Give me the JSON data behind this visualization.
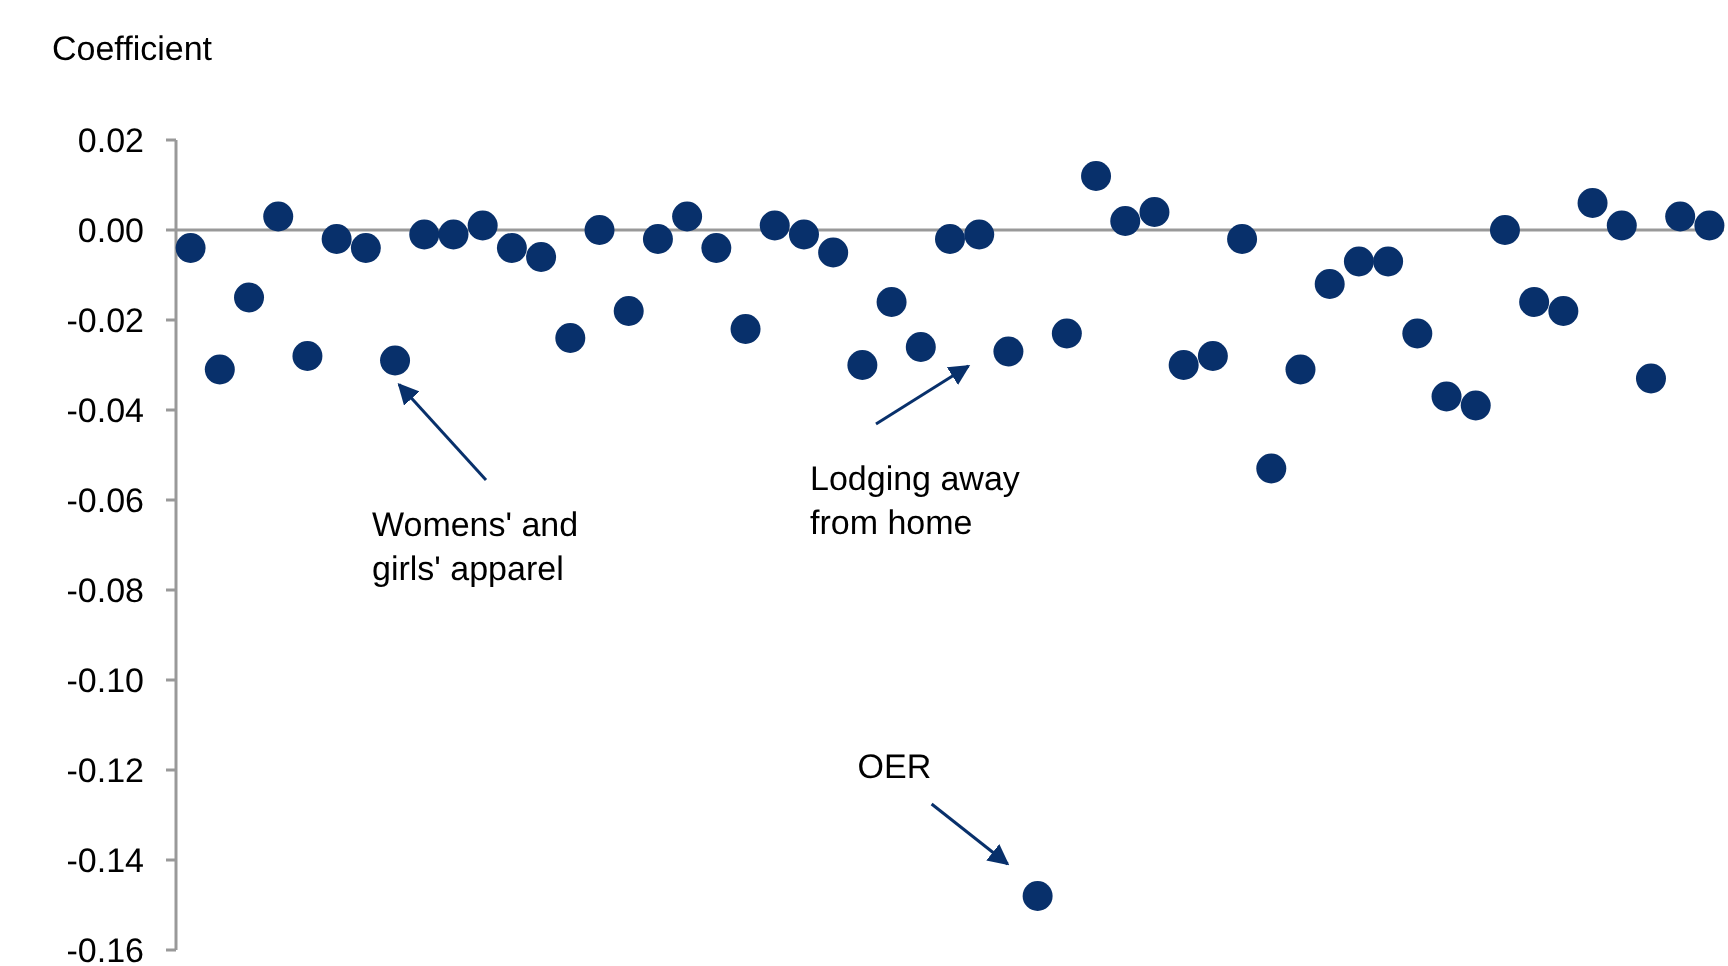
{
  "chart_data": {
    "type": "scatter",
    "ylabel": "Coefficient",
    "categories": [
      null,
      null,
      null,
      null,
      null,
      null,
      null,
      null,
      null,
      null,
      null,
      null,
      null,
      null,
      null,
      null,
      null,
      null,
      null,
      null,
      null,
      null,
      null,
      null,
      null,
      null,
      null,
      null,
      null,
      null,
      null,
      null,
      null,
      null,
      null,
      null,
      null,
      null,
      null,
      null,
      null,
      null,
      null,
      null,
      null,
      null,
      null,
      null,
      null,
      null,
      null,
      null,
      null
    ],
    "series": [
      {
        "color": "#08306b",
        "values": [
          -0.004,
          -0.031,
          -0.015,
          0.003,
          -0.028,
          -0.002,
          -0.004,
          -0.029,
          -0.001,
          -0.001,
          0.001,
          -0.004,
          -0.006,
          -0.024,
          0.0,
          -0.018,
          -0.002,
          0.003,
          -0.004,
          -0.022,
          0.001,
          -0.001,
          -0.005,
          -0.03,
          -0.016,
          -0.026,
          -0.002,
          -0.001,
          -0.027,
          -0.148,
          -0.023,
          0.012,
          0.002,
          0.004,
          -0.03,
          -0.028,
          -0.002,
          -0.053,
          -0.031,
          -0.012,
          -0.007,
          -0.007,
          -0.023,
          -0.037,
          -0.039,
          0.0,
          -0.016,
          -0.018,
          0.006,
          0.001,
          -0.033,
          0.003,
          0.001
        ]
      }
    ],
    "ylim": [
      -0.16,
      0.02
    ],
    "yticks": [
      {
        "value": 0.02,
        "label": "0.02"
      },
      {
        "value": 0,
        "label": "0.00"
      },
      {
        "value": -0.02,
        "label": "-0.02"
      },
      {
        "value": -0.04,
        "label": "-0.04"
      },
      {
        "value": -0.06,
        "label": "-0.06"
      },
      {
        "value": -0.08,
        "label": "-0.08"
      },
      {
        "value": -0.1,
        "label": "-0.10"
      },
      {
        "value": -0.12,
        "label": "-0.12"
      },
      {
        "value": -0.14,
        "label": "-0.14"
      },
      {
        "value": -0.16,
        "label": "-0.16"
      }
    ],
    "marker": "circle",
    "annotations": [
      "Womens' and\ngirls' apparel",
      "Lodging away\nfrom home",
      "OER"
    ]
  }
}
